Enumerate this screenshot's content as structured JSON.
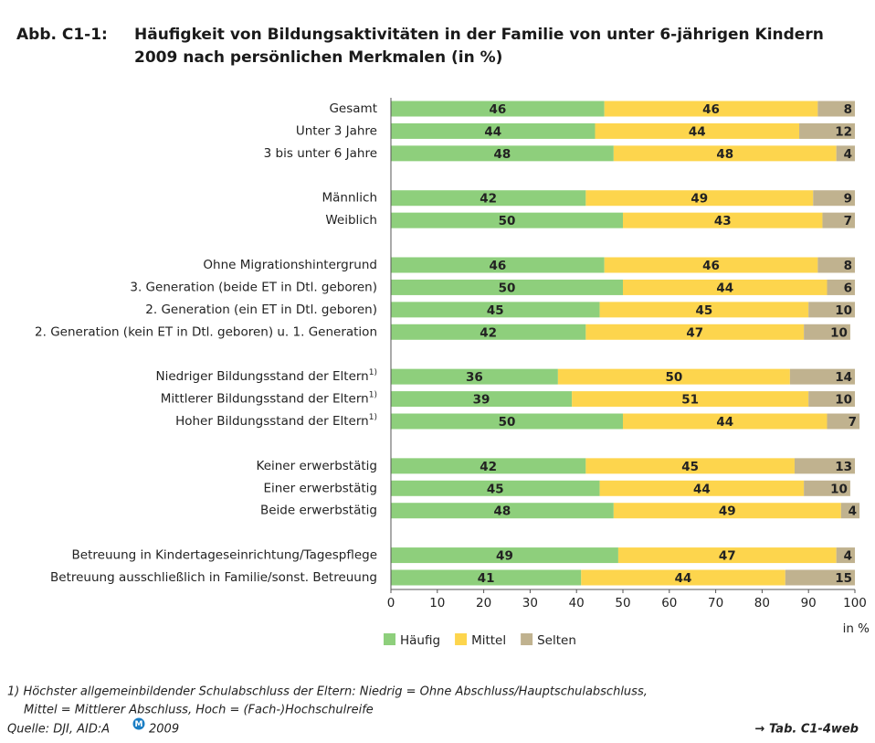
{
  "chart_data": {
    "type": "stacked-barh",
    "figure_label": "Abb. C1-1:",
    "title_lines": [
      "Häufigkeit von Bildungsaktivitäten in der Familie von unter 6-jährigen Kindern",
      "2009 nach persönlichen Merkmalen (in %)"
    ],
    "categories": [
      "Gesamt",
      "Unter 3 Jahre",
      "3 bis unter 6 Jahre",
      null,
      "Männlich",
      "Weiblich",
      null,
      "Ohne Migrationshintergrund",
      "3. Generation (beide ET in Dtl. geboren)",
      "2. Generation (ein ET in Dtl. geboren)",
      "2. Generation (kein ET in Dtl. geboren) u. 1. Generation",
      null,
      "Niedriger Bildungsstand der Eltern",
      "Mittlerer Bildungsstand der Eltern",
      "Hoher Bildungsstand der Eltern",
      null,
      "Keiner erwerbstätig",
      "Einer erwerbstätig",
      "Beide erwerbstätig",
      null,
      "Betreuung in Kindertageseinrichtung/Tagespflege",
      "Betreuung ausschließlich in Familie/sonst. Betreuung"
    ],
    "category_notes": [
      null,
      null,
      null,
      null,
      null,
      null,
      null,
      null,
      null,
      null,
      null,
      null,
      "1)",
      "1)",
      "1)",
      null,
      null,
      null,
      null,
      null,
      null,
      null
    ],
    "series": [
      {
        "name": "Häufig",
        "color": "#8ecf7c",
        "values": [
          46,
          44,
          48,
          null,
          42,
          50,
          null,
          46,
          50,
          45,
          42,
          null,
          36,
          39,
          50,
          null,
          42,
          45,
          48,
          null,
          49,
          41
        ]
      },
      {
        "name": "Mittel",
        "color": "#fdd54d",
        "values": [
          46,
          44,
          48,
          null,
          49,
          43,
          null,
          46,
          44,
          45,
          47,
          null,
          50,
          51,
          44,
          null,
          45,
          44,
          49,
          null,
          47,
          44
        ]
      },
      {
        "name": "Selten",
        "color": "#c0b28f",
        "values": [
          8,
          12,
          4,
          null,
          9,
          7,
          null,
          8,
          6,
          10,
          10,
          null,
          14,
          10,
          7,
          null,
          13,
          10,
          4,
          null,
          4,
          15
        ]
      }
    ],
    "xlim": [
      0,
      100
    ],
    "xticks": [
      0,
      10,
      20,
      30,
      40,
      50,
      60,
      70,
      80,
      90,
      100
    ],
    "xlabel": "in %",
    "grid": false,
    "legend": "bottom",
    "footnotes": [
      "1) Höchster allgemeinbildender Schulabschluss der Eltern: Niedrig = Ohne Abschluss/Hauptschulabschluss,",
      "Mittel = Mittlerer Abschluss, Hoch = (Fach-)Hochschulreife"
    ],
    "source": [
      "Quelle: DJI, AID:A",
      "2009"
    ],
    "reference": "→ Tab. C1-4web"
  }
}
